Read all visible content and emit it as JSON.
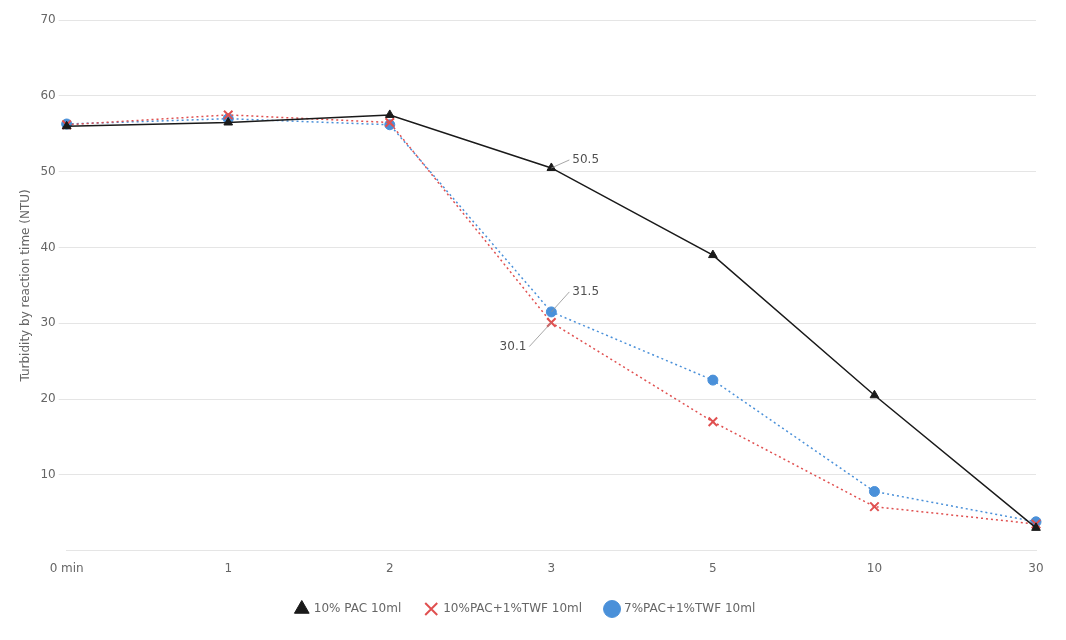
{
  "chart_data": {
    "type": "line",
    "categories": [
      "0 min",
      "1",
      "2",
      "3",
      "5",
      "10",
      "30"
    ],
    "series": [
      {
        "name": "10% PAC 10ml",
        "color": "#1a1a1a",
        "values": [
          56.0,
          56.5,
          57.5,
          50.5,
          39.0,
          20.5,
          3.0
        ],
        "marker": "triangle",
        "line_style": "solid"
      },
      {
        "name": "10%PAC+1%TWF 10ml",
        "color": "#e05050",
        "values": [
          56.2,
          57.5,
          56.5,
          30.1,
          17.0,
          5.8,
          3.5
        ],
        "marker": "x",
        "line_style": "dotted"
      },
      {
        "name": "7%PAC+1%TWF 10ml",
        "color": "#4a90d9",
        "values": [
          56.3,
          57.0,
          56.2,
          31.5,
          22.5,
          7.8,
          3.8
        ],
        "marker": "circle",
        "line_style": "dotted"
      }
    ],
    "ylabel": "Turbidity by reaction time (NTU)",
    "ylim": [
      0,
      70
    ],
    "yticks": [
      10,
      20,
      30,
      40,
      50,
      60,
      70
    ],
    "grid": true,
    "legend": "bottom",
    "annotations": [
      {
        "series": "10% PAC 10ml",
        "category": "3",
        "text": "50.5"
      },
      {
        "series": "10%PAC+1%TWF 10ml",
        "category": "3",
        "text": "30.1"
      },
      {
        "series": "7%PAC+1%TWF 10ml",
        "category": "3",
        "text": "31.5"
      }
    ]
  }
}
